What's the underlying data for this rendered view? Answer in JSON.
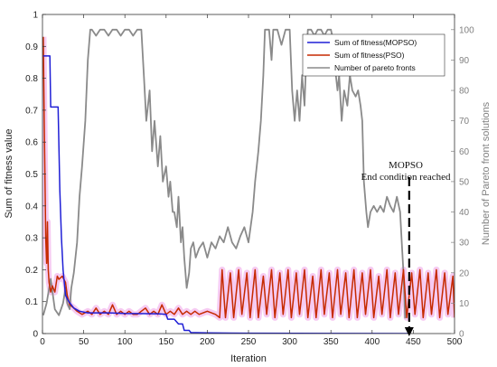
{
  "chart_data": {
    "type": "line",
    "xlabel": "Iteration",
    "ylabel_left": "Sum of fitness value",
    "ylabel_right": "Number of Pareto front solutions",
    "xlim": [
      0,
      500
    ],
    "ylim_left": [
      0,
      1
    ],
    "ylim_right": [
      0,
      105
    ],
    "x_ticks": [
      "0",
      "50",
      "100",
      "150",
      "200",
      "250",
      "300",
      "350",
      "400",
      "450",
      "500"
    ],
    "y_left_ticks": [
      "0",
      "0.1",
      "0.2",
      "0.3",
      "0.4",
      "0.5",
      "0.6",
      "0.7",
      "0.8",
      "0.9",
      "1"
    ],
    "y_right_ticks": [
      "0",
      "10",
      "20",
      "30",
      "40",
      "50",
      "60",
      "70",
      "80",
      "90",
      "100"
    ],
    "grid": false,
    "legend_position": "top-right",
    "colors": {
      "mopso": "#1f1fd6",
      "pso": "#c62a00",
      "pareto": "#8a8a8a",
      "pso_band": "#f4c2f0",
      "axis": "#333333",
      "right_axis": "#808080"
    },
    "annotation": {
      "text_line1": "MOPSO",
      "text_line2": "End condition reached",
      "arrow_x": 445,
      "arrow_from": 0.49,
      "arrow_to": 0.0
    },
    "series": [
      {
        "name": "Sum of fitness(MOPSO)",
        "axis": "left",
        "points": [
          [
            1,
            0.87
          ],
          [
            9,
            0.87
          ],
          [
            10,
            0.71
          ],
          [
            19,
            0.71
          ],
          [
            21,
            0.45
          ],
          [
            23,
            0.3
          ],
          [
            25,
            0.2
          ],
          [
            28,
            0.12
          ],
          [
            32,
            0.1
          ],
          [
            38,
            0.08
          ],
          [
            45,
            0.07
          ],
          [
            55,
            0.065
          ],
          [
            80,
            0.065
          ],
          [
            100,
            0.063
          ],
          [
            140,
            0.062
          ],
          [
            150,
            0.06
          ],
          [
            152,
            0.045
          ],
          [
            160,
            0.045
          ],
          [
            165,
            0.03
          ],
          [
            170,
            0.03
          ],
          [
            172,
            0.01
          ],
          [
            178,
            0.01
          ],
          [
            180,
            0.003
          ],
          [
            200,
            0.002
          ],
          [
            250,
            0.001
          ],
          [
            445,
            0.0
          ]
        ]
      },
      {
        "name": "Sum of fitness(PSO)",
        "axis": "left",
        "points": [
          [
            1,
            0.93
          ],
          [
            2,
            0.7
          ],
          [
            3,
            0.5
          ],
          [
            4,
            0.3
          ],
          [
            5,
            0.22
          ],
          [
            6,
            0.35
          ],
          [
            7,
            0.2
          ],
          [
            8,
            0.16
          ],
          [
            10,
            0.13
          ],
          [
            12,
            0.15
          ],
          [
            15,
            0.13
          ],
          [
            18,
            0.18
          ],
          [
            20,
            0.17
          ],
          [
            24,
            0.18
          ],
          [
            28,
            0.16
          ],
          [
            30,
            0.12
          ],
          [
            33,
            0.09
          ],
          [
            38,
            0.08
          ],
          [
            42,
            0.07
          ],
          [
            48,
            0.06
          ],
          [
            55,
            0.07
          ],
          [
            60,
            0.06
          ],
          [
            65,
            0.08
          ],
          [
            70,
            0.06
          ],
          [
            75,
            0.07
          ],
          [
            80,
            0.06
          ],
          [
            85,
            0.09
          ],
          [
            90,
            0.06
          ],
          [
            95,
            0.07
          ],
          [
            100,
            0.06
          ],
          [
            105,
            0.07
          ],
          [
            110,
            0.06
          ],
          [
            115,
            0.06
          ],
          [
            120,
            0.07
          ],
          [
            125,
            0.08
          ],
          [
            130,
            0.06
          ],
          [
            135,
            0.07
          ],
          [
            140,
            0.06
          ],
          [
            145,
            0.09
          ],
          [
            150,
            0.06
          ],
          [
            155,
            0.07
          ],
          [
            160,
            0.06
          ],
          [
            165,
            0.08
          ],
          [
            170,
            0.06
          ],
          [
            175,
            0.07
          ],
          [
            180,
            0.06
          ],
          [
            185,
            0.07
          ],
          [
            190,
            0.06
          ],
          [
            200,
            0.07
          ],
          [
            210,
            0.06
          ],
          [
            215,
            0.05
          ],
          [
            218,
            0.2
          ],
          [
            222,
            0.05
          ],
          [
            228,
            0.19
          ],
          [
            232,
            0.05
          ],
          [
            238,
            0.2
          ],
          [
            242,
            0.06
          ],
          [
            248,
            0.19
          ],
          [
            252,
            0.05
          ],
          [
            258,
            0.2
          ],
          [
            262,
            0.05
          ],
          [
            268,
            0.18
          ],
          [
            272,
            0.06
          ],
          [
            278,
            0.2
          ],
          [
            282,
            0.05
          ],
          [
            288,
            0.19
          ],
          [
            292,
            0.06
          ],
          [
            298,
            0.2
          ],
          [
            302,
            0.05
          ],
          [
            308,
            0.19
          ],
          [
            312,
            0.06
          ],
          [
            318,
            0.2
          ],
          [
            322,
            0.05
          ],
          [
            328,
            0.18
          ],
          [
            332,
            0.05
          ],
          [
            338,
            0.2
          ],
          [
            342,
            0.06
          ],
          [
            348,
            0.19
          ],
          [
            352,
            0.05
          ],
          [
            358,
            0.2
          ],
          [
            362,
            0.06
          ],
          [
            368,
            0.19
          ],
          [
            372,
            0.05
          ],
          [
            378,
            0.2
          ],
          [
            382,
            0.05
          ],
          [
            388,
            0.19
          ],
          [
            392,
            0.06
          ],
          [
            398,
            0.2
          ],
          [
            402,
            0.05
          ],
          [
            408,
            0.18
          ],
          [
            412,
            0.06
          ],
          [
            418,
            0.2
          ],
          [
            422,
            0.05
          ],
          [
            428,
            0.19
          ],
          [
            432,
            0.06
          ],
          [
            438,
            0.2
          ],
          [
            442,
            0.05
          ],
          [
            448,
            0.19
          ],
          [
            452,
            0.06
          ],
          [
            458,
            0.2
          ],
          [
            462,
            0.05
          ],
          [
            468,
            0.19
          ],
          [
            472,
            0.06
          ],
          [
            478,
            0.2
          ],
          [
            482,
            0.05
          ],
          [
            488,
            0.19
          ],
          [
            492,
            0.06
          ],
          [
            498,
            0.18
          ],
          [
            500,
            0.05
          ]
        ]
      },
      {
        "name": "Number of pareto fronts",
        "axis": "right",
        "points": [
          [
            1,
            6
          ],
          [
            5,
            10
          ],
          [
            10,
            18
          ],
          [
            15,
            8
          ],
          [
            20,
            6
          ],
          [
            25,
            10
          ],
          [
            28,
            15
          ],
          [
            30,
            10
          ],
          [
            33,
            8
          ],
          [
            35,
            15
          ],
          [
            38,
            20
          ],
          [
            42,
            30
          ],
          [
            45,
            45
          ],
          [
            48,
            55
          ],
          [
            52,
            70
          ],
          [
            55,
            90
          ],
          [
            58,
            100
          ],
          [
            60,
            100
          ],
          [
            65,
            98
          ],
          [
            70,
            100
          ],
          [
            75,
            100
          ],
          [
            80,
            98
          ],
          [
            85,
            100
          ],
          [
            90,
            100
          ],
          [
            95,
            98
          ],
          [
            100,
            100
          ],
          [
            105,
            100
          ],
          [
            110,
            98
          ],
          [
            115,
            100
          ],
          [
            120,
            100
          ],
          [
            123,
            85
          ],
          [
            126,
            70
          ],
          [
            130,
            80
          ],
          [
            133,
            60
          ],
          [
            136,
            70
          ],
          [
            140,
            55
          ],
          [
            143,
            65
          ],
          [
            146,
            50
          ],
          [
            150,
            55
          ],
          [
            153,
            45
          ],
          [
            155,
            50
          ],
          [
            158,
            40
          ],
          [
            160,
            40
          ],
          [
            163,
            35
          ],
          [
            165,
            45
          ],
          [
            168,
            30
          ],
          [
            170,
            35
          ],
          [
            172,
            25
          ],
          [
            175,
            15
          ],
          [
            178,
            20
          ],
          [
            180,
            28
          ],
          [
            183,
            30
          ],
          [
            186,
            25
          ],
          [
            190,
            28
          ],
          [
            195,
            30
          ],
          [
            200,
            25
          ],
          [
            205,
            30
          ],
          [
            210,
            28
          ],
          [
            215,
            32
          ],
          [
            220,
            30
          ],
          [
            225,
            35
          ],
          [
            230,
            30
          ],
          [
            235,
            28
          ],
          [
            240,
            32
          ],
          [
            245,
            35
          ],
          [
            250,
            30
          ],
          [
            255,
            40
          ],
          [
            258,
            50
          ],
          [
            262,
            60
          ],
          [
            265,
            70
          ],
          [
            268,
            85
          ],
          [
            270,
            100
          ],
          [
            275,
            100
          ],
          [
            278,
            90
          ],
          [
            280,
            100
          ],
          [
            285,
            100
          ],
          [
            290,
            95
          ],
          [
            295,
            100
          ],
          [
            300,
            100
          ],
          [
            303,
            80
          ],
          [
            306,
            70
          ],
          [
            309,
            80
          ],
          [
            312,
            70
          ],
          [
            315,
            85
          ],
          [
            318,
            75
          ],
          [
            320,
            90
          ],
          [
            322,
            100
          ],
          [
            326,
            100
          ],
          [
            330,
            98
          ],
          [
            334,
            100
          ],
          [
            338,
            100
          ],
          [
            342,
            98
          ],
          [
            346,
            100
          ],
          [
            350,
            100
          ],
          [
            354,
            95
          ],
          [
            356,
            85
          ],
          [
            358,
            80
          ],
          [
            360,
            85
          ],
          [
            363,
            70
          ],
          [
            366,
            80
          ],
          [
            370,
            75
          ],
          [
            373,
            85
          ],
          [
            376,
            80
          ],
          [
            380,
            78
          ],
          [
            383,
            80
          ],
          [
            386,
            75
          ],
          [
            388,
            70
          ],
          [
            390,
            50
          ],
          [
            393,
            40
          ],
          [
            395,
            35
          ],
          [
            398,
            40
          ],
          [
            402,
            42
          ],
          [
            406,
            40
          ],
          [
            410,
            42
          ],
          [
            414,
            40
          ],
          [
            418,
            45
          ],
          [
            422,
            42
          ],
          [
            426,
            40
          ],
          [
            430,
            45
          ],
          [
            434,
            40
          ],
          [
            436,
            30
          ],
          [
            438,
            20
          ],
          [
            440,
            5
          ]
        ]
      }
    ]
  }
}
